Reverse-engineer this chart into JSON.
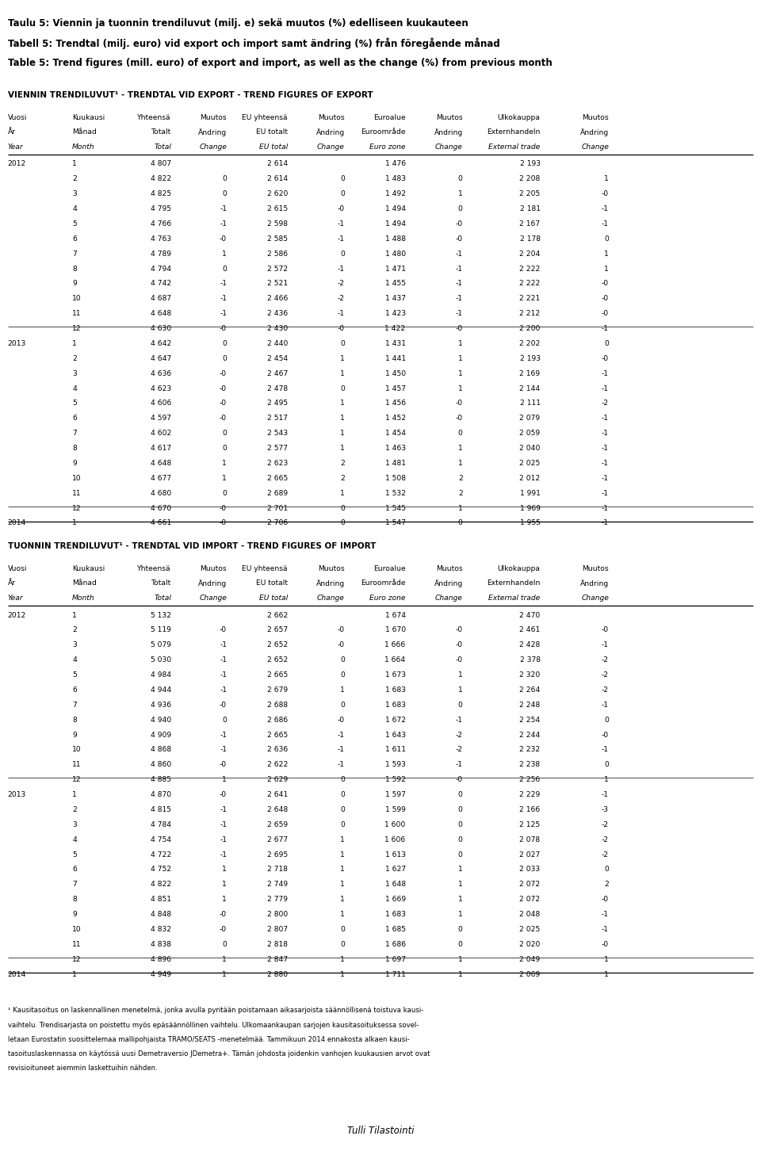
{
  "title1": "Taulu 5: Viennin ja tuonnin trendiluvut (milj. e) sekä muutos (%) edelliseen kuukauteen",
  "title2": "Tabell 5: Trendtal (milj. euro) vid export och import samt ändring (%) från föregående månad",
  "title3": "Table 5: Trend figures (mill. euro) of export and import, as well as the change (%) from previous month",
  "export_section": "VIENNIN TRENDILUVUT¹ - TRENDTAL VID EXPORT - TREND FIGURES OF EXPORT",
  "import_section": "TUONNIN TRENDILUVUT¹ - TRENDTAL VID IMPORT - TREND FIGURES OF IMPORT",
  "col_headers": [
    [
      "Vuosi",
      "År",
      "Year"
    ],
    [
      "Kuukausi",
      "Månad",
      "Month"
    ],
    [
      "Yhteensä",
      "Totalt",
      "Total"
    ],
    [
      "Muutos",
      "Ändring",
      "Change"
    ],
    [
      "EU yhteensä",
      "EU totalt",
      "EU total"
    ],
    [
      "Muutos",
      "Ändring",
      "Change"
    ],
    [
      "Euroalue",
      "Euroområde",
      "Euro zone"
    ],
    [
      "Muutos",
      "Ändring",
      "Change"
    ],
    [
      "Ulkokauppa",
      "Externhandeln",
      "External trade"
    ],
    [
      "Muutos",
      "Ändring",
      "Change"
    ]
  ],
  "export_data": [
    [
      2012,
      1,
      4807,
      "",
      2614,
      "",
      1476,
      "",
      2193,
      ""
    ],
    [
      2012,
      2,
      4822,
      "0",
      2614,
      "0",
      1483,
      "0",
      2208,
      "1"
    ],
    [
      2012,
      3,
      4825,
      "0",
      2620,
      "0",
      1492,
      "1",
      2205,
      "-0"
    ],
    [
      2012,
      4,
      4795,
      "-1",
      2615,
      "-0",
      1494,
      "0",
      2181,
      "-1"
    ],
    [
      2012,
      5,
      4766,
      "-1",
      2598,
      "-1",
      1494,
      "-0",
      2167,
      "-1"
    ],
    [
      2012,
      6,
      4763,
      "-0",
      2585,
      "-1",
      1488,
      "-0",
      2178,
      "0"
    ],
    [
      2012,
      7,
      4789,
      "1",
      2586,
      "0",
      1480,
      "-1",
      2204,
      "1"
    ],
    [
      2012,
      8,
      4794,
      "0",
      2572,
      "-1",
      1471,
      "-1",
      2222,
      "1"
    ],
    [
      2012,
      9,
      4742,
      "-1",
      2521,
      "-2",
      1455,
      "-1",
      2222,
      "-0"
    ],
    [
      2012,
      10,
      4687,
      "-1",
      2466,
      "-2",
      1437,
      "-1",
      2221,
      "-0"
    ],
    [
      2012,
      11,
      4648,
      "-1",
      2436,
      "-1",
      1423,
      "-1",
      2212,
      "-0"
    ],
    [
      2012,
      12,
      4630,
      "-0",
      2430,
      "-0",
      1422,
      "-0",
      2200,
      "-1"
    ],
    [
      2013,
      1,
      4642,
      "0",
      2440,
      "0",
      1431,
      "1",
      2202,
      "0"
    ],
    [
      2013,
      2,
      4647,
      "0",
      2454,
      "1",
      1441,
      "1",
      2193,
      "-0"
    ],
    [
      2013,
      3,
      4636,
      "-0",
      2467,
      "1",
      1450,
      "1",
      2169,
      "-1"
    ],
    [
      2013,
      4,
      4623,
      "-0",
      2478,
      "0",
      1457,
      "1",
      2144,
      "-1"
    ],
    [
      2013,
      5,
      4606,
      "-0",
      2495,
      "1",
      1456,
      "-0",
      2111,
      "-2"
    ],
    [
      2013,
      6,
      4597,
      "-0",
      2517,
      "1",
      1452,
      "-0",
      2079,
      "-1"
    ],
    [
      2013,
      7,
      4602,
      "0",
      2543,
      "1",
      1454,
      "0",
      2059,
      "-1"
    ],
    [
      2013,
      8,
      4617,
      "0",
      2577,
      "1",
      1463,
      "1",
      2040,
      "-1"
    ],
    [
      2013,
      9,
      4648,
      "1",
      2623,
      "2",
      1481,
      "1",
      2025,
      "-1"
    ],
    [
      2013,
      10,
      4677,
      "1",
      2665,
      "2",
      1508,
      "2",
      2012,
      "-1"
    ],
    [
      2013,
      11,
      4680,
      "0",
      2689,
      "1",
      1532,
      "2",
      1991,
      "-1"
    ],
    [
      2013,
      12,
      4670,
      "-0",
      2701,
      "0",
      1545,
      "1",
      1969,
      "-1"
    ],
    [
      2014,
      1,
      4661,
      "-0",
      2706,
      "0",
      1547,
      "0",
      1955,
      "-1"
    ]
  ],
  "import_data": [
    [
      2012,
      1,
      5132,
      "",
      2662,
      "",
      1674,
      "",
      2470,
      ""
    ],
    [
      2012,
      2,
      5119,
      "-0",
      2657,
      "-0",
      1670,
      "-0",
      2461,
      "-0"
    ],
    [
      2012,
      3,
      5079,
      "-1",
      2652,
      "-0",
      1666,
      "-0",
      2428,
      "-1"
    ],
    [
      2012,
      4,
      5030,
      "-1",
      2652,
      "0",
      1664,
      "-0",
      2378,
      "-2"
    ],
    [
      2012,
      5,
      4984,
      "-1",
      2665,
      "0",
      1673,
      "1",
      2320,
      "-2"
    ],
    [
      2012,
      6,
      4944,
      "-1",
      2679,
      "1",
      1683,
      "1",
      2264,
      "-2"
    ],
    [
      2012,
      7,
      4936,
      "-0",
      2688,
      "0",
      1683,
      "0",
      2248,
      "-1"
    ],
    [
      2012,
      8,
      4940,
      "0",
      2686,
      "-0",
      1672,
      "-1",
      2254,
      "0"
    ],
    [
      2012,
      9,
      4909,
      "-1",
      2665,
      "-1",
      1643,
      "-2",
      2244,
      "-0"
    ],
    [
      2012,
      10,
      4868,
      "-1",
      2636,
      "-1",
      1611,
      "-2",
      2232,
      "-1"
    ],
    [
      2012,
      11,
      4860,
      "-0",
      2622,
      "-1",
      1593,
      "-1",
      2238,
      "0"
    ],
    [
      2012,
      12,
      4885,
      "1",
      2629,
      "0",
      1592,
      "-0",
      2256,
      "1"
    ],
    [
      2013,
      1,
      4870,
      "-0",
      2641,
      "0",
      1597,
      "0",
      2229,
      "-1"
    ],
    [
      2013,
      2,
      4815,
      "-1",
      2648,
      "0",
      1599,
      "0",
      2166,
      "-3"
    ],
    [
      2013,
      3,
      4784,
      "-1",
      2659,
      "0",
      1600,
      "0",
      2125,
      "-2"
    ],
    [
      2013,
      4,
      4754,
      "-1",
      2677,
      "1",
      1606,
      "0",
      2078,
      "-2"
    ],
    [
      2013,
      5,
      4722,
      "-1",
      2695,
      "1",
      1613,
      "0",
      2027,
      "-2"
    ],
    [
      2013,
      6,
      4752,
      "1",
      2718,
      "1",
      1627,
      "1",
      2033,
      "0"
    ],
    [
      2013,
      7,
      4822,
      "1",
      2749,
      "1",
      1648,
      "1",
      2072,
      "2"
    ],
    [
      2013,
      8,
      4851,
      "1",
      2779,
      "1",
      1669,
      "1",
      2072,
      "-0"
    ],
    [
      2013,
      9,
      4848,
      "-0",
      2800,
      "1",
      1683,
      "1",
      2048,
      "-1"
    ],
    [
      2013,
      10,
      4832,
      "-0",
      2807,
      "0",
      1685,
      "0",
      2025,
      "-1"
    ],
    [
      2013,
      11,
      4838,
      "0",
      2818,
      "0",
      1686,
      "0",
      2020,
      "-0"
    ],
    [
      2013,
      12,
      4896,
      "1",
      2847,
      "1",
      1697,
      "1",
      2049,
      "1"
    ],
    [
      2014,
      1,
      4949,
      "1",
      2880,
      "1",
      1711,
      "1",
      2069,
      "1"
    ]
  ],
  "footnote_lines": [
    "¹ Kausitasoitus on laskennallinen menetelmä, jonka avulla pyritään poistamaan aikasarjoista säännöllisenä toistuva kausi-",
    "vaihtelu. Trendisarjasta on poistettu myös epäsäännöllinen vaihtelu. Ulkomaankaupan sarjojen kausitasoituksessa sovel-",
    "letaan Eurostatin suosittelemaa mallipohjaista TRAMO/SEATS -menetelmää. Tammikuun 2014 ennakosta alkaen kausi-",
    "tasoituslaskennassa on käytössä uusi Demetraversio JDemetra+. Tämän johdosta joidenkin vanhojen kuukausien arvot ovat",
    "revisioituneet aiemmin laskettuihin nähden."
  ],
  "source": "Tulli Tilastointi",
  "bg_color": "#ffffff",
  "text_color": "#000000"
}
